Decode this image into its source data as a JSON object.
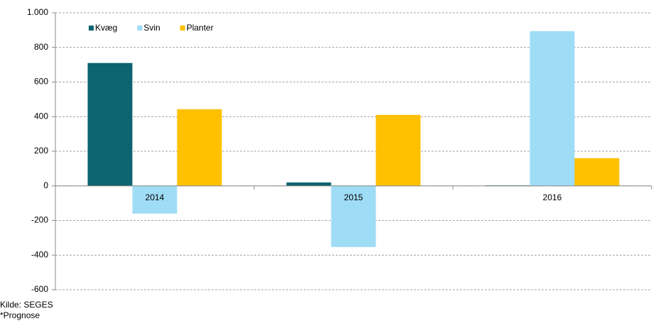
{
  "chart_data": {
    "type": "bar",
    "categories": [
      "2014",
      "2015",
      "2016"
    ],
    "series": [
      {
        "name": "Kvæg",
        "color": "#0b6470",
        "values": [
          710,
          20,
          3
        ]
      },
      {
        "name": "Svin",
        "color": "#9fdcf6",
        "values": [
          -160,
          -353,
          894
        ]
      },
      {
        "name": "Planter",
        "color": "#ffc000",
        "values": [
          443,
          410,
          160
        ]
      }
    ],
    "ylim": [
      -600,
      1000
    ],
    "yticks": [
      -600,
      -400,
      -200,
      0,
      200,
      400,
      600,
      800,
      {
        "value": 1000,
        "label": "1.000"
      }
    ],
    "grid": true,
    "legend": "top-left",
    "notes": [
      "Kilde: SEGES",
      "*Prognose"
    ]
  }
}
